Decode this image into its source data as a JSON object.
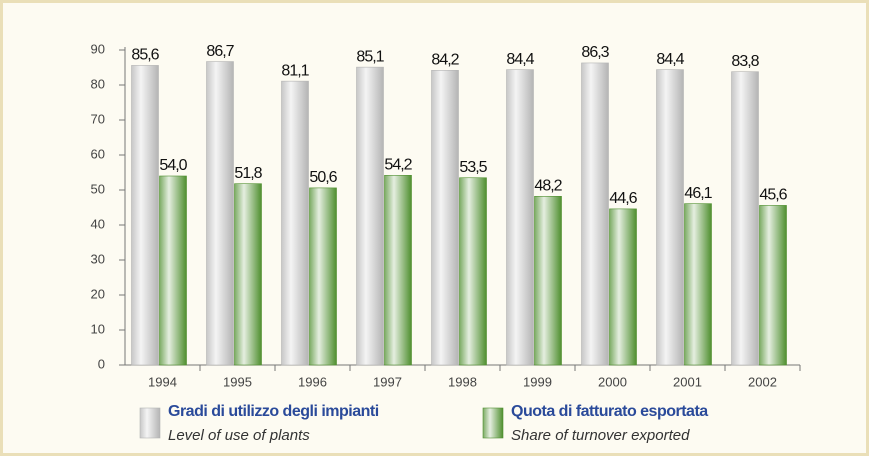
{
  "chart_data": {
    "type": "bar",
    "categories": [
      "1994",
      "1995",
      "1996",
      "1997",
      "1998",
      "1999",
      "2000",
      "2001",
      "2002"
    ],
    "series": [
      {
        "name": "Gradi di utilizzo degli impianti",
        "name_en": "Level of use of plants",
        "color": "#b4b4b4",
        "values": [
          85.6,
          86.7,
          81.1,
          85.1,
          84.2,
          84.4,
          86.3,
          84.4,
          83.8
        ],
        "value_labels": [
          "85,6",
          "86,7",
          "81,1",
          "85,1",
          "84,2",
          "84,4",
          "86,3",
          "84,4",
          "83,8"
        ]
      },
      {
        "name": "Quota di fatturato esportata",
        "name_en": "Share of turnover exported",
        "color": "#4f8f2f",
        "values": [
          54.0,
          51.8,
          50.6,
          54.2,
          53.5,
          48.2,
          44.6,
          46.1,
          45.6
        ],
        "value_labels": [
          "54,0",
          "51,8",
          "50,6",
          "54,2",
          "53,5",
          "48,2",
          "44,6",
          "46,1",
          "45,6"
        ]
      }
    ],
    "ylim": [
      0,
      90
    ],
    "yticks": [
      0,
      10,
      20,
      30,
      40,
      50,
      60,
      70,
      80,
      90
    ]
  }
}
